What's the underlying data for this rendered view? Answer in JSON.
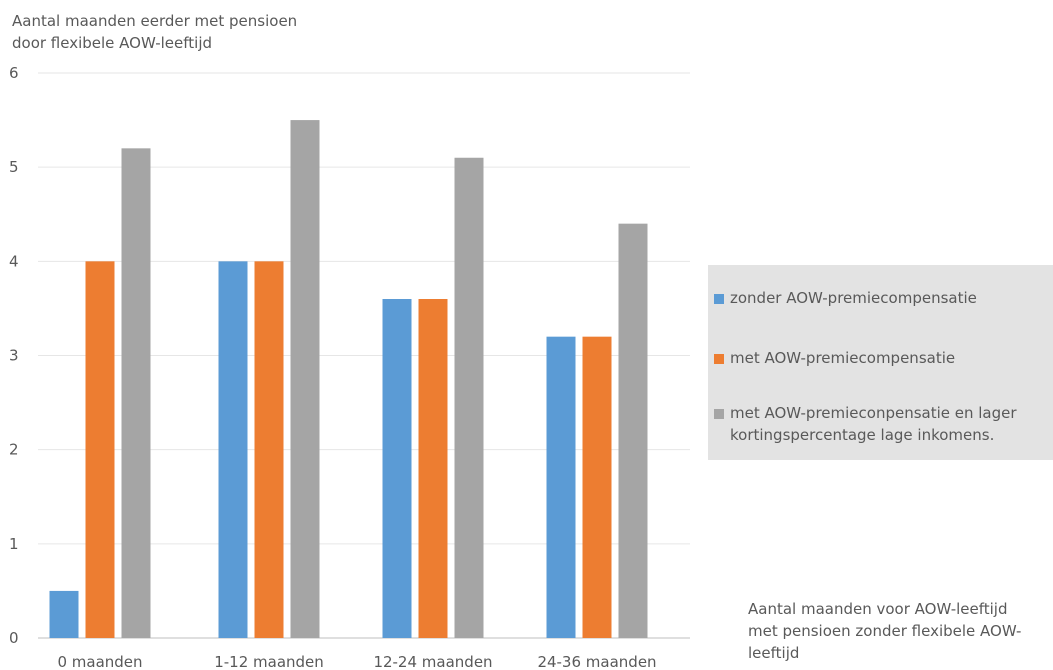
{
  "chart_data": {
    "type": "bar",
    "y_title": "Aantal maanden eerder met pensioen\ndoor flexibele AOW-leeftijd",
    "x_title": "Aantal maanden voor AOW-leeftijd\nmet pensioen zonder flexibele AOW-\nleeftijd",
    "categories": [
      "0 maanden",
      "1-12 maanden",
      "12-24 maanden",
      "24-36 maanden"
    ],
    "ylim": [
      0,
      6
    ],
    "yticks": [
      0,
      1,
      2,
      3,
      4,
      5,
      6
    ],
    "grid": true,
    "legend_position": "right",
    "series": [
      {
        "name": "zonder AOW-premiecompensatie",
        "color": "#5b9bd5",
        "values": [
          0.5,
          4.0,
          3.6,
          3.2
        ]
      },
      {
        "name": "met AOW-premiecompensatie",
        "color": "#ed7d31",
        "values": [
          4.0,
          4.0,
          3.6,
          3.2
        ]
      },
      {
        "name": "met AOW-premieconpensatie en lager\nkortingspercentage lage inkomens.",
        "color": "#a5a5a5",
        "values": [
          5.2,
          5.5,
          5.1,
          4.4
        ]
      }
    ]
  }
}
